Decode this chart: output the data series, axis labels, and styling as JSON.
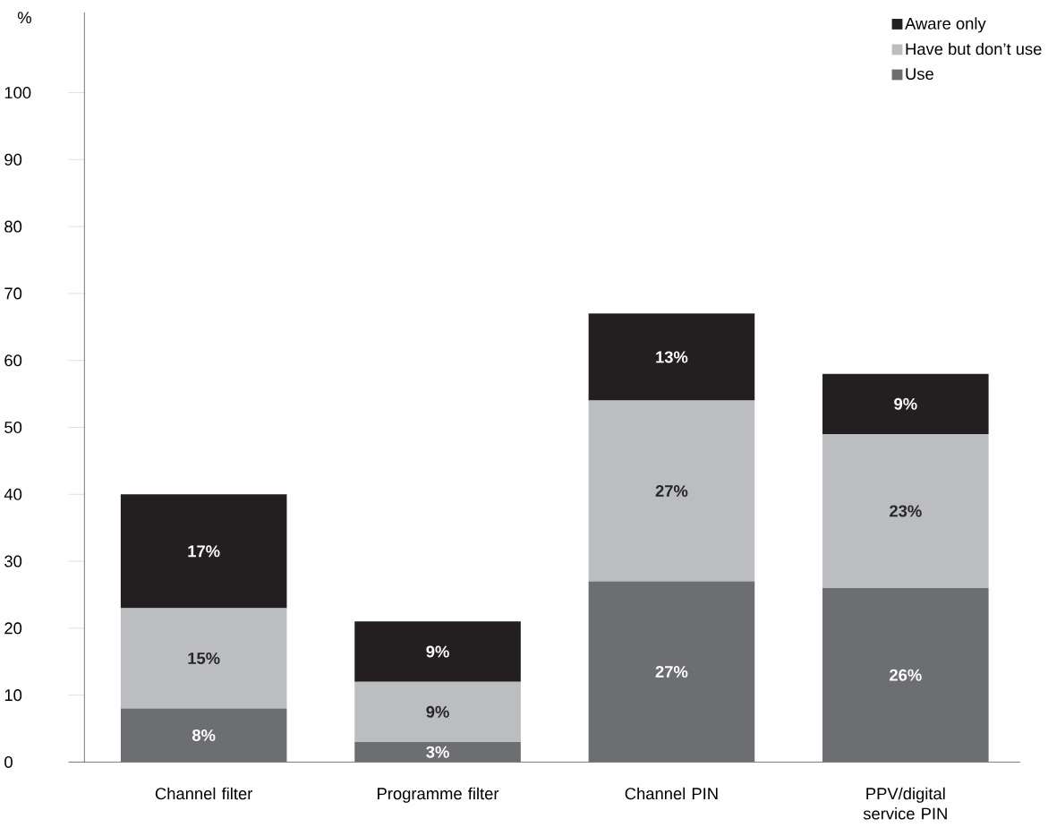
{
  "chart_data": {
    "type": "bar",
    "stacked": true,
    "ylabel": "%",
    "categories": [
      "Channel filter",
      "Programme filter",
      "Channel PIN",
      "PPV/digital service PIN"
    ],
    "series": [
      {
        "name": "Use",
        "color": "#6d6e71",
        "values": [
          8,
          3,
          27,
          26
        ],
        "value_labels": [
          "8%",
          "3%",
          "27%",
          "26%"
        ]
      },
      {
        "name": "Have but don’t use",
        "color": "#bcbdc0",
        "values": [
          15,
          9,
          27,
          23
        ],
        "value_labels": [
          "15%",
          "9%",
          "27%",
          "23%"
        ]
      },
      {
        "name": "Aware only",
        "color": "#231f20",
        "values": [
          17,
          9,
          13,
          9
        ],
        "value_labels": [
          "17%",
          "9%",
          "13%",
          "9%"
        ]
      }
    ],
    "ylim": [
      0,
      112
    ],
    "yticks": [
      0,
      10,
      20,
      30,
      40,
      50,
      60,
      70,
      80,
      90,
      100
    ],
    "legend": "top right"
  }
}
